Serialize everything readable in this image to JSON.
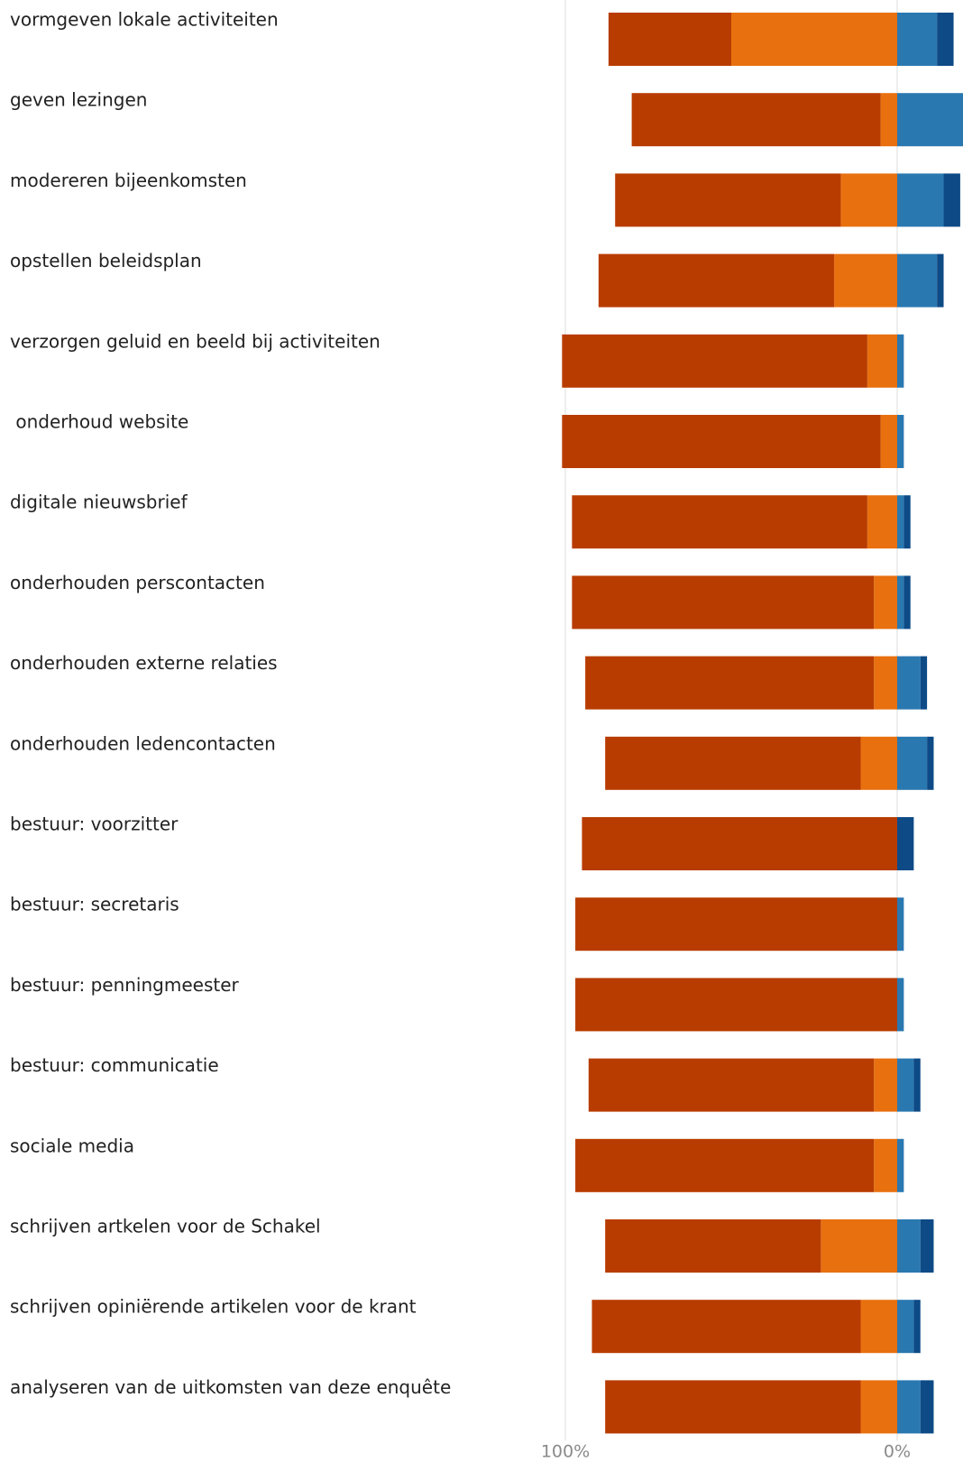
{
  "chart_data": {
    "type": "bar",
    "orientation": "horizontal",
    "stacking": "diverging",
    "xlim": [
      -100,
      19
    ],
    "x_ticks": [
      {
        "value": -100,
        "label": "100%"
      },
      {
        "value": 0,
        "label": "0%"
      }
    ],
    "grid": true,
    "legend": "none",
    "colors": {
      "neg_outer": "#b83c00",
      "neg_inner": "#e8700f",
      "pos_inner": "#2a78b0",
      "pos_outer": "#0d4a86",
      "grid": "#e3e3e3",
      "label": "#222222",
      "tick": "#8a8a8a"
    },
    "categories": [
      "vormgeven lokale activiteiten",
      "geven lezingen",
      "modereren bijeenkomsten",
      "opstellen beleidsplan",
      "verzorgen geluid en beeld bij activiteiten",
      " onderhoud website",
      "digitale nieuwsbrief",
      "onderhouden perscontacten",
      "onderhouden externe relaties",
      "onderhouden ledencontacten",
      "bestuur: voorzitter",
      "bestuur: secretaris",
      "bestuur: penningmeester",
      "bestuur: communicatie",
      "sociale media",
      "schrijven artkelen voor de Schakel",
      "schrijven opiniërende artikelen voor de krant",
      "analyseren van de uitkomsten van deze enquête"
    ],
    "series": [
      {
        "role": "neg_outer",
        "values": [
          -37,
          -75,
          -68,
          -71,
          -92,
          -96,
          -89,
          -91,
          -87,
          -77,
          -95,
          -97,
          -97,
          -86,
          -90,
          -65,
          -81,
          -77
        ]
      },
      {
        "role": "neg_inner",
        "values": [
          -50,
          -5,
          -17,
          -19,
          -9,
          -5,
          -9,
          -7,
          -7,
          -11,
          0,
          0,
          0,
          -7,
          -7,
          -23,
          -11,
          -11
        ]
      },
      {
        "role": "pos_inner",
        "values": [
          12,
          20,
          14,
          12,
          2,
          2,
          2,
          2,
          7,
          9,
          0,
          2,
          2,
          5,
          2,
          7,
          5,
          7
        ]
      },
      {
        "role": "pos_outer",
        "values": [
          5,
          0,
          5,
          2,
          0,
          0,
          2,
          2,
          2,
          2,
          5,
          0,
          0,
          2,
          0,
          4,
          2,
          4
        ]
      }
    ]
  }
}
